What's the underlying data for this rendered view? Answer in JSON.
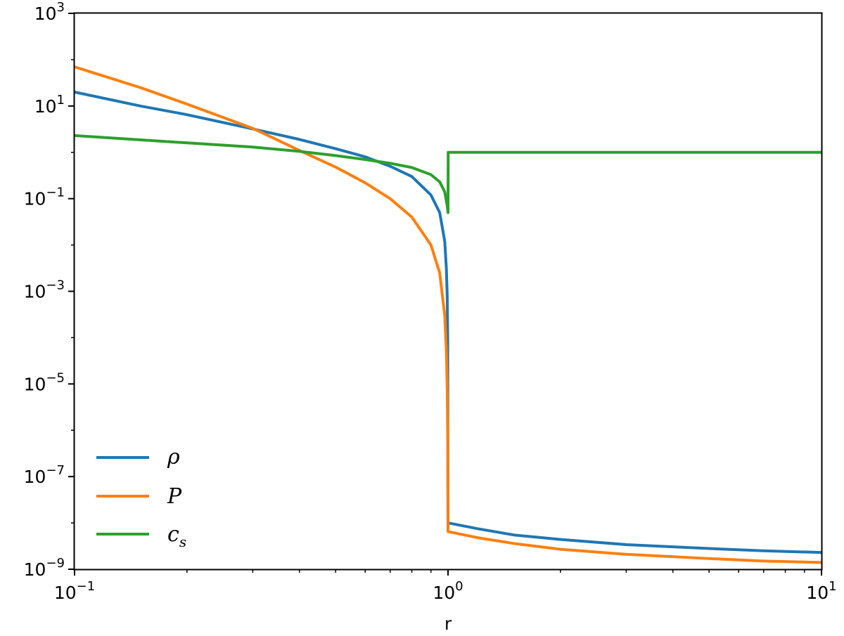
{
  "chart_data": {
    "type": "line",
    "xlabel": "r",
    "ylabel": "",
    "xscale": "log",
    "yscale": "log",
    "xlim": [
      0.1,
      10
    ],
    "ylim": [
      1e-09,
      1000
    ],
    "x_ticks": [
      {
        "base": "10",
        "exp": "−1"
      },
      {
        "base": "10",
        "exp": "0"
      },
      {
        "base": "10",
        "exp": "1"
      }
    ],
    "y_ticks": [
      {
        "base": "10",
        "exp": "−9"
      },
      {
        "base": "10",
        "exp": "−7"
      },
      {
        "base": "10",
        "exp": "−5"
      },
      {
        "base": "10",
        "exp": "−3"
      },
      {
        "base": "10",
        "exp": "−1"
      },
      {
        "base": "10",
        "exp": "1"
      },
      {
        "base": "10",
        "exp": "3"
      }
    ],
    "grid": false,
    "legend_position": "lower-left",
    "series": [
      {
        "name": "ρ",
        "color": "#1f77b4",
        "points": [
          [
            0.1,
            20
          ],
          [
            0.15,
            10
          ],
          [
            0.2,
            6.5
          ],
          [
            0.3,
            3.2
          ],
          [
            0.4,
            1.9
          ],
          [
            0.5,
            1.2
          ],
          [
            0.6,
            0.8
          ],
          [
            0.7,
            0.5
          ],
          [
            0.8,
            0.3
          ],
          [
            0.9,
            0.12
          ],
          [
            0.95,
            0.05
          ],
          [
            0.98,
            0.012
          ],
          [
            0.99,
            0.003
          ],
          [
            0.995,
            0.0008
          ],
          [
            0.998,
            0.0001
          ],
          [
            1.0,
            1e-08
          ],
          [
            1.2,
            7.5e-09
          ],
          [
            1.5,
            5.5e-09
          ],
          [
            2,
            4.4e-09
          ],
          [
            3,
            3.4e-09
          ],
          [
            5,
            2.8e-09
          ],
          [
            7,
            2.5e-09
          ],
          [
            10,
            2.3e-09
          ]
        ]
      },
      {
        "name": "P",
        "color": "#ff7f0e",
        "points": [
          [
            0.1,
            70
          ],
          [
            0.15,
            25
          ],
          [
            0.2,
            11
          ],
          [
            0.3,
            3.3
          ],
          [
            0.4,
            1.1
          ],
          [
            0.5,
            0.48
          ],
          [
            0.6,
            0.22
          ],
          [
            0.7,
            0.1
          ],
          [
            0.8,
            0.04
          ],
          [
            0.9,
            0.01
          ],
          [
            0.95,
            0.0025
          ],
          [
            0.98,
            0.0003
          ],
          [
            0.99,
            5e-05
          ],
          [
            0.995,
            8e-06
          ],
          [
            0.998,
            1e-06
          ],
          [
            1.0,
            6.5e-09
          ],
          [
            1.2,
            4.8e-09
          ],
          [
            1.5,
            3.6e-09
          ],
          [
            2,
            2.7e-09
          ],
          [
            3,
            2.1e-09
          ],
          [
            5,
            1.7e-09
          ],
          [
            7,
            1.5e-09
          ],
          [
            10,
            1.4e-09
          ]
        ]
      },
      {
        "name": "c_s",
        "color": "#2ca02c",
        "points": [
          [
            0.1,
            2.3
          ],
          [
            0.2,
            1.6
          ],
          [
            0.3,
            1.3
          ],
          [
            0.4,
            1.05
          ],
          [
            0.5,
            0.85
          ],
          [
            0.6,
            0.7
          ],
          [
            0.7,
            0.58
          ],
          [
            0.8,
            0.47
          ],
          [
            0.9,
            0.33
          ],
          [
            0.95,
            0.23
          ],
          [
            0.98,
            0.14
          ],
          [
            0.995,
            0.07
          ],
          [
            1.0,
            0.05
          ],
          [
            1.001,
            1.0
          ],
          [
            2,
            1.0
          ],
          [
            5,
            1.0
          ],
          [
            10,
            1.0
          ]
        ]
      }
    ]
  },
  "legend": {
    "rho": "ρ",
    "p": "P",
    "cs_main": "c",
    "cs_sub": "s"
  }
}
